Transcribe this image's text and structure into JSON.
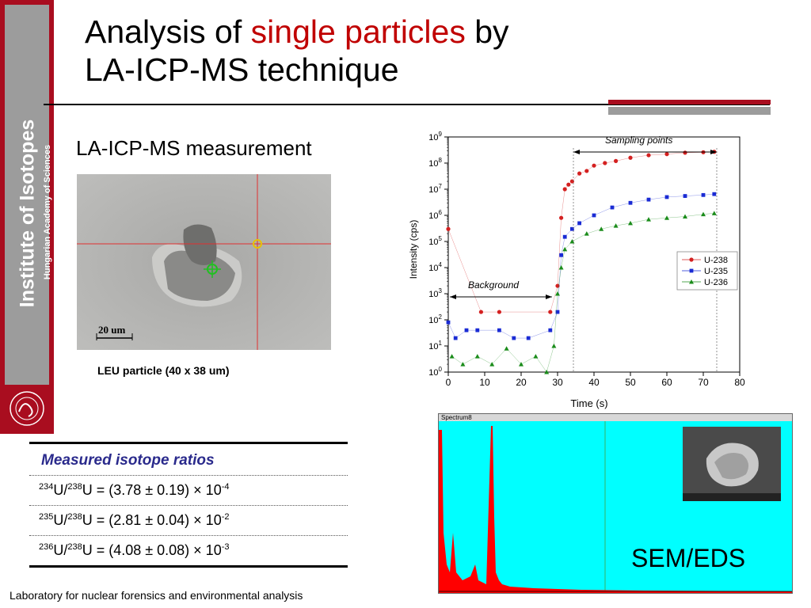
{
  "sidebar": {
    "institute": "Institute of Isotopes",
    "academy": "Hungarian Academy of Sciences"
  },
  "title": {
    "part1": "Analysis of ",
    "highlight": "single particles",
    "part2": " by",
    "line2": "LA-ICP-MS technique"
  },
  "subtitle": "LA-ICP-MS measurement",
  "micrograph": {
    "scale_label": "20 um",
    "caption": "LEU particle (40 x 38 um)"
  },
  "chart_data": {
    "type": "scatter",
    "xlabel": "Time (s)",
    "ylabel": "Intensity (cps)",
    "xlim": [
      0,
      80
    ],
    "ylim_log10": [
      0,
      9
    ],
    "x_ticks": [
      "0",
      "10",
      "20",
      "30",
      "40",
      "50",
      "60",
      "70",
      "80"
    ],
    "y_ticks": [
      "10^0",
      "10^1",
      "10^2",
      "10^3",
      "10^4",
      "10^5",
      "10^6",
      "10^7",
      "10^8",
      "10^9"
    ],
    "annotations": [
      "Sampling points",
      "Background"
    ],
    "legend_position": "right",
    "series": [
      {
        "name": "U-238",
        "color": "#d42020",
        "marker": "circle",
        "x": [
          0,
          9,
          14,
          28,
          30,
          31,
          32,
          33,
          34,
          36,
          38,
          40,
          43,
          46,
          50,
          55,
          60,
          65,
          70,
          73
        ],
        "y": [
          300000.0,
          200,
          200,
          200,
          2000,
          800000.0,
          10000000.0,
          15000000.0,
          20000000.0,
          40000000.0,
          50000000.0,
          80000000.0,
          100000000.0,
          120000000.0,
          160000000.0,
          200000000.0,
          220000000.0,
          250000000.0,
          260000000.0,
          270000000.0
        ]
      },
      {
        "name": "U-235",
        "color": "#1a2bd4",
        "marker": "square",
        "x": [
          0,
          2,
          5,
          8,
          14,
          18,
          22,
          28,
          30,
          31,
          32,
          34,
          36,
          40,
          45,
          50,
          55,
          60,
          65,
          70,
          73
        ],
        "y": [
          80,
          20,
          40,
          40,
          40,
          20,
          20,
          40,
          200,
          30000.0,
          150000.0,
          300000.0,
          500000.0,
          1000000.0,
          2000000.0,
          3000000.0,
          4000000.0,
          5000000.0,
          5500000.0,
          6000000.0,
          6500000.0
        ]
      },
      {
        "name": "U-236",
        "color": "#1a8c1a",
        "marker": "triangle",
        "x": [
          1,
          4,
          8,
          12,
          16,
          20,
          24,
          27,
          29,
          30,
          31,
          32,
          34,
          38,
          42,
          46,
          50,
          55,
          60,
          65,
          70,
          73
        ],
        "y": [
          4,
          2,
          4,
          2,
          8,
          2,
          4,
          1,
          10,
          1000,
          10000.0,
          50000.0,
          100000.0,
          200000.0,
          300000.0,
          400000.0,
          500000.0,
          700000.0,
          800000.0,
          900000.0,
          1100000.0,
          1200000.0
        ]
      }
    ]
  },
  "table": {
    "header": "Measured isotope ratios",
    "rows": [
      {
        "a": "234",
        "b": "238",
        "value": " = (3.78 ± 0.19) × 10",
        "exp": "-4"
      },
      {
        "a": "235",
        "b": "238",
        "value": " = (2.81 ± 0.04) × 10",
        "exp": "-2"
      },
      {
        "a": "236",
        "b": "238",
        "value": " = (4.08 ± 0.08) × 10",
        "exp": "-3"
      }
    ]
  },
  "sem": {
    "window_title": "Spectrum8",
    "label": "SEM/EDS",
    "axis_mark": "10"
  },
  "footer": "Laboratory for nuclear forensics and environmental analysis",
  "colors": {
    "brand_red": "#a90d1f",
    "title_red": "#c00000",
    "sem_bg": "#00ffff"
  }
}
